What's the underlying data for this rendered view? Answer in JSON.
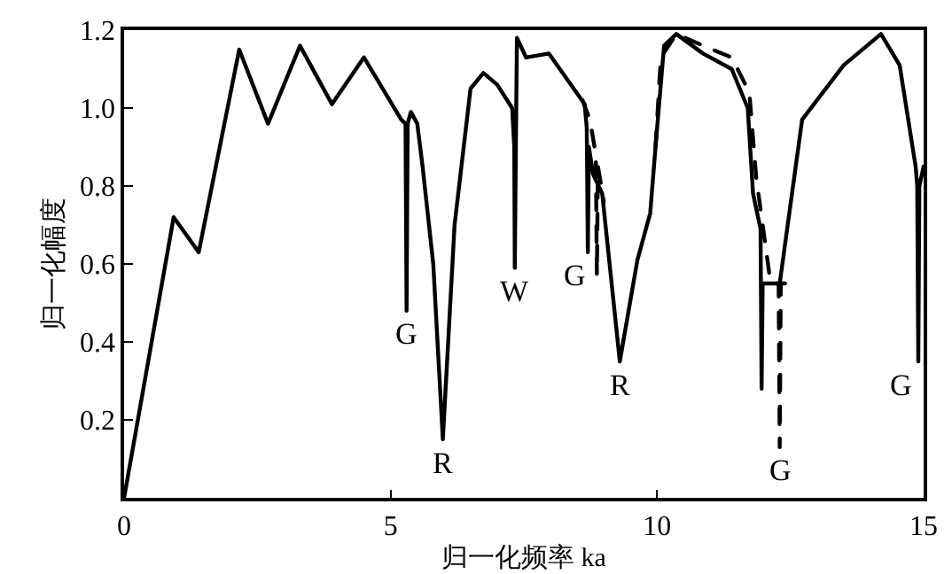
{
  "chart_data": {
    "type": "line",
    "xlabel": "归一化频率 ka",
    "ylabel": "归一化幅度",
    "xlim": [
      0,
      15
    ],
    "ylim": [
      0,
      1.2
    ],
    "xticks": [
      0,
      5,
      10,
      15
    ],
    "yticks": [
      0.2,
      0.4,
      0.6,
      0.8,
      {
        "value": 1,
        "label": "1.0"
      },
      {
        "value": 1.2,
        "label": "1.2"
      }
    ],
    "grid": false,
    "marker": "none",
    "series": [
      {
        "color": "#000000",
        "line_style": "solid",
        "x": [
          0,
          0.93,
          1.4,
          2.16,
          2.7,
          3.3,
          3.9,
          4.5,
          5.2,
          5.28,
          5.3,
          5.32,
          5.38,
          5.5,
          5.6,
          5.8,
          5.98,
          6.2,
          6.5,
          6.74,
          7.0,
          7.28,
          7.32,
          7.33,
          7.35,
          7.37,
          7.54,
          7.97,
          8.64,
          8.68,
          8.7,
          8.72,
          8.8,
          8.97,
          9.3,
          9.63,
          9.87,
          9.97,
          10.13,
          10.36,
          10.86,
          11.4,
          11.7,
          11.8,
          11.94,
          11.96,
          11.98,
          12.0,
          12.3,
          12.72,
          13.5,
          14.2,
          14.55,
          14.85,
          14.88,
          14.9,
          14.92,
          15.0
        ],
        "values": [
          0,
          0.72,
          0.63,
          1.15,
          0.96,
          1.16,
          1.01,
          1.13,
          0.97,
          0.96,
          0.48,
          0.96,
          0.99,
          0.96,
          0.85,
          0.6,
          0.15,
          0.7,
          1.05,
          1.09,
          1.06,
          1.0,
          0.9,
          0.59,
          0.9,
          1.18,
          1.13,
          1.14,
          1.01,
          0.95,
          0.63,
          0.9,
          0.83,
          0.78,
          0.35,
          0.61,
          0.73,
          0.9,
          1.16,
          1.19,
          1.14,
          1.1,
          1.0,
          0.78,
          0.69,
          0.28,
          0.55,
          0.55,
          0.55,
          0.97,
          1.11,
          1.19,
          1.11,
          0.85,
          0.8,
          0.35,
          0.8,
          0.85
        ]
      },
      {
        "color": "#000000",
        "line_style": "dashed",
        "x": [
          8.6,
          8.74,
          8.85,
          8.87,
          8.89,
          9.0,
          9.2,
          9.97,
          10.07,
          10.36,
          10.86,
          11.4,
          11.73,
          11.86,
          12.13,
          12.28,
          12.3,
          12.32,
          12.4
        ],
        "values": [
          1.02,
          0.97,
          0.88,
          0.57,
          0.85,
          0.76,
          null,
          0.9,
          1.13,
          1.19,
          1.16,
          1.13,
          1.04,
          0.82,
          0.55,
          0.55,
          0.13,
          0.55,
          0.55
        ]
      }
    ],
    "annotations": [
      {
        "text": "G",
        "x": 5.3,
        "y": 0.48
      },
      {
        "text": "R",
        "x": 5.98,
        "y": 0.15
      },
      {
        "text": "W",
        "x": 7.33,
        "y": 0.59
      },
      {
        "text": "G",
        "x": 8.7,
        "y": 0.63
      },
      {
        "text": "R",
        "x": 9.3,
        "y": 0.35
      },
      {
        "text": "G",
        "x": 12.3,
        "y": 0.13
      },
      {
        "text": "G",
        "x": 14.9,
        "y": 0.35
      }
    ]
  }
}
